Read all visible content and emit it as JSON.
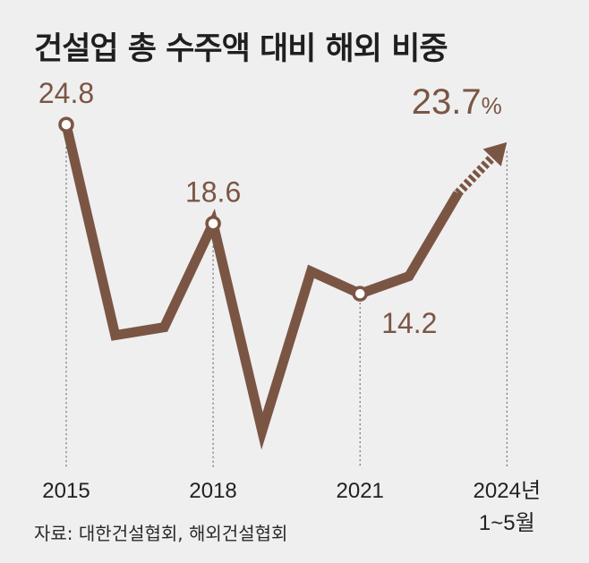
{
  "chart_data": {
    "type": "line",
    "title": "건설업 총 수주액 대비 해외 비중",
    "source": "자료: 대한건설협회, 해외건설협회",
    "x": [
      "2015",
      "2016",
      "2017",
      "2018",
      "2019",
      "2020",
      "2021",
      "2022",
      "2023",
      "2024년 1~5월"
    ],
    "values": [
      24.8,
      11.6,
      12.1,
      18.6,
      5.6,
      15.6,
      14.2,
      15.3,
      20.5,
      23.7
    ],
    "ylim": [
      4,
      27
    ],
    "xticks": [
      {
        "index": 0,
        "label": "2015"
      },
      {
        "index": 3,
        "label": "2018"
      },
      {
        "index": 6,
        "label": "2021"
      },
      {
        "index": 9,
        "label": "2024년",
        "sublabel": "1~5월"
      }
    ],
    "data_labels": [
      {
        "index": 0,
        "text": "24.8"
      },
      {
        "index": 3,
        "text": "18.6"
      },
      {
        "index": 6,
        "text": "14.2"
      },
      {
        "index": 9,
        "text": "23.7",
        "unit": "%"
      }
    ],
    "dashed_arrow_segment": {
      "from_index": 8,
      "to_index": 9
    },
    "grid": false,
    "legend": "none",
    "colors": {
      "line": "#7b5544",
      "label": "#7b5544",
      "tick": "#222222",
      "guide": "#555555",
      "background": "#efefef"
    }
  }
}
